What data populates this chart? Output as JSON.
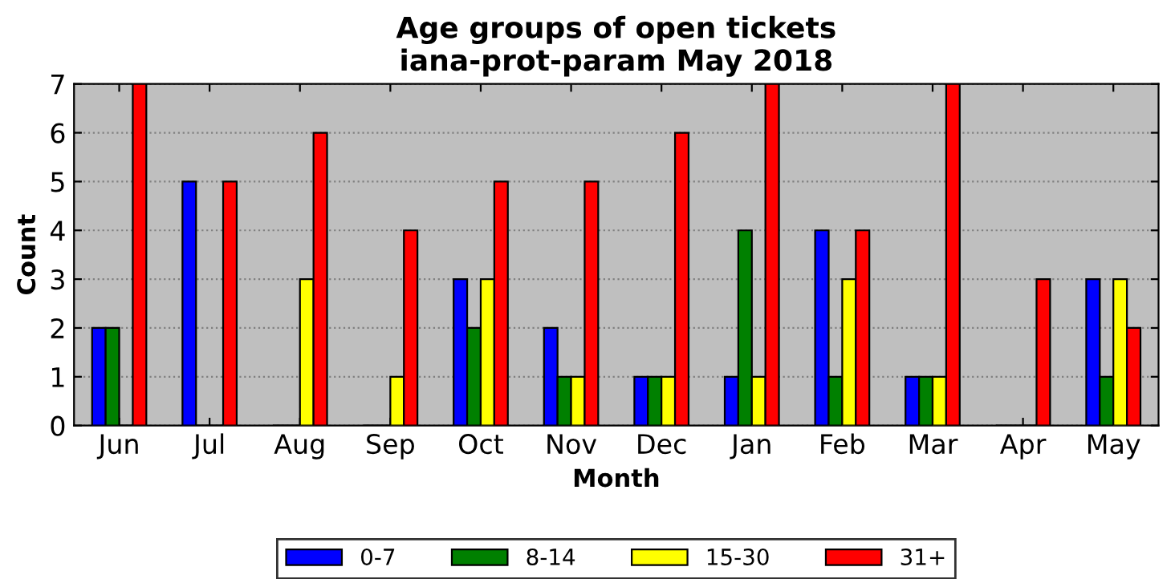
{
  "chart_data": {
    "type": "bar",
    "title": "Age groups of open tickets\niana-prot-param May 2018",
    "xlabel": "Month",
    "ylabel": "Count",
    "categories": [
      "Jun",
      "Jul",
      "Aug",
      "Sep",
      "Oct",
      "Nov",
      "Dec",
      "Jan",
      "Feb",
      "Mar",
      "Apr",
      "May"
    ],
    "series": [
      {
        "name": "0-7",
        "color": "#0000ff",
        "values": [
          2,
          5,
          0,
          0,
          3,
          2,
          1,
          1,
          4,
          1,
          0,
          3
        ]
      },
      {
        "name": "8-14",
        "color": "#008000",
        "values": [
          2,
          0,
          0,
          0,
          2,
          1,
          1,
          4,
          1,
          1,
          0,
          1
        ]
      },
      {
        "name": "15-30",
        "color": "#ffff00",
        "values": [
          0,
          0,
          3,
          1,
          3,
          1,
          1,
          1,
          3,
          1,
          0,
          3
        ]
      },
      {
        "name": "31+",
        "color": "#ff0000",
        "values": [
          7,
          5,
          6,
          4,
          5,
          5,
          6,
          7,
          4,
          7,
          3,
          2
        ]
      }
    ],
    "ylim": [
      0,
      7
    ],
    "yticks": [
      0,
      1,
      2,
      3,
      4,
      5,
      6,
      7
    ],
    "grid": "y",
    "legend": "bottom"
  }
}
